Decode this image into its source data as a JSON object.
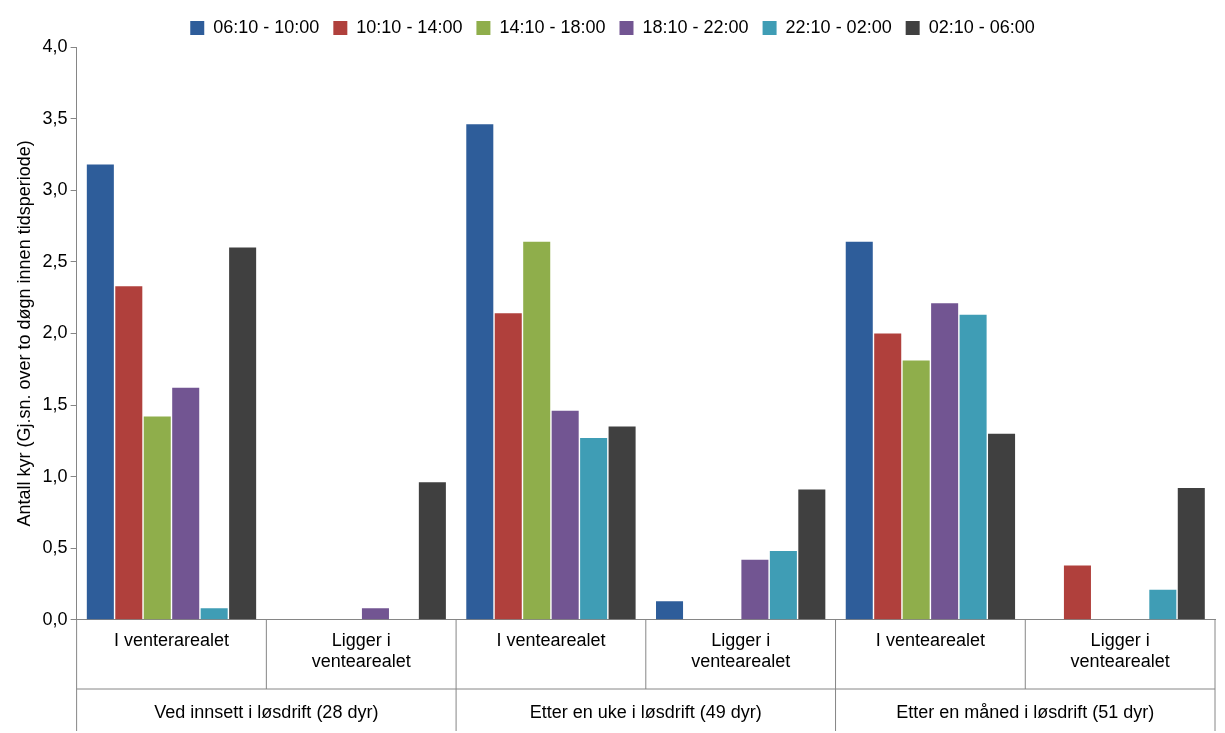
{
  "chart_data": {
    "type": "bar",
    "ylabel": "Antall kyr (Gj.sn. over to døgn innen tidsperiode)",
    "categories": [
      "I venterarealet",
      "Ligger i ventearealet",
      "I ventearealet",
      "Ligger i ventearealet",
      "I ventearealet",
      "Ligger i ventearealet"
    ],
    "annotations": [
      "Ved innsett i løsdrift (28 dyr)",
      "Etter en uke i løsdrift (49 dyr)",
      "Etter en måned i løsdrift (51 dyr)"
    ],
    "series": [
      {
        "name": "06:10 - 10:00",
        "color": "#2e5d9a",
        "values": [
          3.18,
          0,
          3.46,
          0.13,
          2.64,
          0
        ]
      },
      {
        "name": "10:10 - 14:00",
        "color": "#b0403c",
        "values": [
          2.33,
          0,
          2.14,
          0,
          2.0,
          0.38
        ]
      },
      {
        "name": "14:10 - 18:00",
        "color": "#8fae4b",
        "values": [
          1.42,
          0,
          2.64,
          0,
          1.81,
          0
        ]
      },
      {
        "name": "18:10 - 22:00",
        "color": "#725592",
        "values": [
          1.62,
          0.08,
          1.46,
          0.42,
          2.21,
          0
        ]
      },
      {
        "name": "22:10 - 02:00",
        "color": "#3f9db5",
        "values": [
          0.08,
          0,
          1.27,
          0.48,
          2.13,
          0.21
        ]
      },
      {
        "name": "02:10 - 06:00",
        "color": "#404040",
        "values": [
          2.6,
          0.96,
          1.35,
          0.91,
          1.3,
          0.92
        ]
      }
    ],
    "ylim": [
      0,
      4
    ],
    "yticks": [
      {
        "value": 0,
        "label": "0,0"
      },
      {
        "value": 0.5,
        "label": "0,5"
      },
      {
        "value": 1,
        "label": "1,0"
      },
      {
        "value": 1.5,
        "label": "1,5"
      },
      {
        "value": 2,
        "label": "2,0"
      },
      {
        "value": 2.5,
        "label": "2,5"
      },
      {
        "value": 3,
        "label": "3,0"
      },
      {
        "value": 3.5,
        "label": "3,5"
      },
      {
        "value": 4,
        "label": "4,0"
      }
    ],
    "grid": false,
    "legend": "top"
  }
}
